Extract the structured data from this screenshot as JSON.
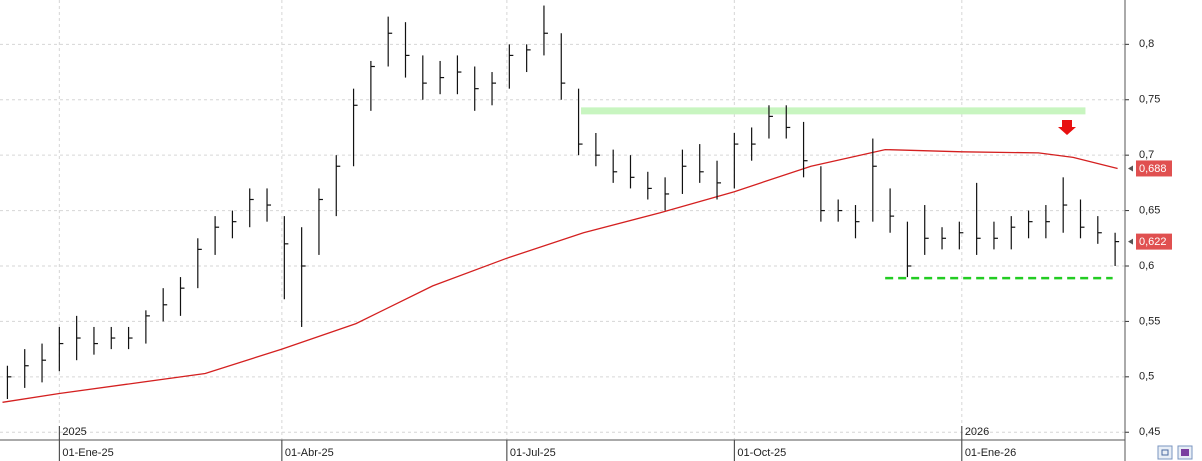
{
  "chart_data": {
    "type": "ohlc",
    "x": [
      "2024-12-09",
      "2024-12-16",
      "2024-12-23",
      "2024-12-30",
      "2025-01-06",
      "2025-01-13",
      "2025-01-20",
      "2025-01-27",
      "2025-02-03",
      "2025-02-10",
      "2025-02-17",
      "2025-02-24",
      "2025-03-03",
      "2025-03-10",
      "2025-03-17",
      "2025-03-24",
      "2025-03-31",
      "2025-04-07",
      "2025-04-14",
      "2025-04-21",
      "2025-04-28",
      "2025-05-05",
      "2025-05-12",
      "2025-05-19",
      "2025-05-26",
      "2025-06-02",
      "2025-06-09",
      "2025-06-16",
      "2025-06-23",
      "2025-06-30",
      "2025-07-07",
      "2025-07-14",
      "2025-07-21",
      "2025-07-28",
      "2025-08-04",
      "2025-08-11",
      "2025-08-18",
      "2025-08-25",
      "2025-09-01",
      "2025-09-08",
      "2025-09-15",
      "2025-09-22",
      "2025-09-29",
      "2025-10-06",
      "2025-10-13",
      "2025-10-20",
      "2025-10-27",
      "2025-11-03",
      "2025-11-10",
      "2025-11-17",
      "2025-11-24",
      "2025-12-01",
      "2025-12-08",
      "2025-12-15",
      "2025-12-22",
      "2025-12-29",
      "2026-01-05",
      "2026-01-12",
      "2026-01-19",
      "2026-01-26",
      "2026-02-02",
      "2026-02-09",
      "2026-02-16",
      "2026-02-23",
      "2026-03-02"
    ],
    "high": [
      0.51,
      0.525,
      0.53,
      0.545,
      0.555,
      0.545,
      0.545,
      0.545,
      0.56,
      0.58,
      0.59,
      0.625,
      0.645,
      0.65,
      0.67,
      0.67,
      0.645,
      0.635,
      0.67,
      0.7,
      0.76,
      0.785,
      0.825,
      0.82,
      0.79,
      0.785,
      0.79,
      0.78,
      0.775,
      0.8,
      0.8,
      0.835,
      0.81,
      0.76,
      0.72,
      0.705,
      0.7,
      0.685,
      0.68,
      0.705,
      0.71,
      0.695,
      0.72,
      0.725,
      0.745,
      0.745,
      0.73,
      0.69,
      0.66,
      0.655,
      0.715,
      0.67,
      0.64,
      0.655,
      0.635,
      0.64,
      0.675,
      0.64,
      0.645,
      0.65,
      0.655,
      0.68,
      0.66,
      0.645,
      0.63
    ],
    "low": [
      0.48,
      0.49,
      0.495,
      0.505,
      0.515,
      0.52,
      0.525,
      0.525,
      0.53,
      0.55,
      0.555,
      0.58,
      0.61,
      0.625,
      0.635,
      0.64,
      0.57,
      0.545,
      0.61,
      0.645,
      0.69,
      0.74,
      0.78,
      0.77,
      0.75,
      0.755,
      0.755,
      0.74,
      0.745,
      0.76,
      0.775,
      0.79,
      0.75,
      0.7,
      0.69,
      0.675,
      0.67,
      0.66,
      0.65,
      0.665,
      0.675,
      0.66,
      0.67,
      0.695,
      0.715,
      0.715,
      0.68,
      0.64,
      0.64,
      0.625,
      0.64,
      0.63,
      0.59,
      0.61,
      0.615,
      0.615,
      0.61,
      0.615,
      0.615,
      0.625,
      0.625,
      0.63,
      0.625,
      0.62,
      0.6
    ],
    "close": [
      0.5,
      0.51,
      0.515,
      0.53,
      0.535,
      0.53,
      0.535,
      0.535,
      0.555,
      0.565,
      0.58,
      0.615,
      0.635,
      0.64,
      0.66,
      0.655,
      0.62,
      0.6,
      0.66,
      0.69,
      0.745,
      0.78,
      0.81,
      0.79,
      0.765,
      0.77,
      0.775,
      0.76,
      0.765,
      0.79,
      0.795,
      0.81,
      0.765,
      0.71,
      0.7,
      0.685,
      0.68,
      0.67,
      0.665,
      0.69,
      0.685,
      0.675,
      0.71,
      0.71,
      0.735,
      0.725,
      0.695,
      0.65,
      0.65,
      0.64,
      0.69,
      0.645,
      0.6,
      0.625,
      0.625,
      0.63,
      0.625,
      0.625,
      0.635,
      0.64,
      0.64,
      0.655,
      0.635,
      0.63,
      0.622
    ],
    "bar_color": "#111111",
    "moving_average": {
      "color": "#d42020",
      "x": [
        "2024-12-09",
        "2025-01-01",
        "2025-03-01",
        "2025-04-01",
        "2025-05-01",
        "2025-06-01",
        "2025-07-01",
        "2025-08-01",
        "2025-09-01",
        "2025-10-01",
        "2025-11-01",
        "2025-12-01",
        "2026-01-01",
        "2026-02-01",
        "2026-02-15",
        "2026-03-05"
      ],
      "values": [
        0.477,
        0.485,
        0.503,
        0.525,
        0.548,
        0.582,
        0.607,
        0.63,
        0.648,
        0.667,
        0.69,
        0.705,
        0.703,
        0.702,
        0.698,
        0.688
      ]
    },
    "levels": [
      {
        "value": 0.74,
        "from": "2025-07-31",
        "to": "2026-02-20",
        "color": "#c8f5c0",
        "style": "band"
      },
      {
        "value": 0.589,
        "from": "2025-12-01",
        "to": "2026-03-03",
        "color": "#22cc22",
        "style": "dashed"
      }
    ],
    "xlim": [
      "2024-12-08",
      "2026-03-08"
    ],
    "xticks": [
      {
        "value": "2025-01-01",
        "label": "01-Ene-25"
      },
      {
        "value": "2025-04-01",
        "label": "01-Abr-25"
      },
      {
        "value": "2025-07-01",
        "label": "01-Jul-25"
      },
      {
        "value": "2025-10-01",
        "label": "01-Oct-25"
      },
      {
        "value": "2026-01-01",
        "label": "01-Ene-26"
      }
    ],
    "year_ticks": [
      {
        "value": "2025-01-01",
        "label": "2025"
      },
      {
        "value": "2026-01-01",
        "label": "2026"
      }
    ],
    "ylim": [
      0.443,
      0.84
    ],
    "yticks": [
      {
        "value": 0.45,
        "label": "0,45"
      },
      {
        "value": 0.5,
        "label": "0,5"
      },
      {
        "value": 0.55,
        "label": "0,55"
      },
      {
        "value": 0.6,
        "label": "0,6"
      },
      {
        "value": 0.65,
        "label": "0,65"
      },
      {
        "value": 0.7,
        "label": "0,7"
      },
      {
        "value": 0.75,
        "label": "0,75"
      },
      {
        "value": 0.8,
        "label": "0,8"
      }
    ],
    "last_labels": [
      {
        "value": 0.688,
        "label": "0,688",
        "color": "#e05050"
      },
      {
        "value": 0.622,
        "label": "0,622",
        "color": "#e05050"
      }
    ],
    "grid": true
  }
}
